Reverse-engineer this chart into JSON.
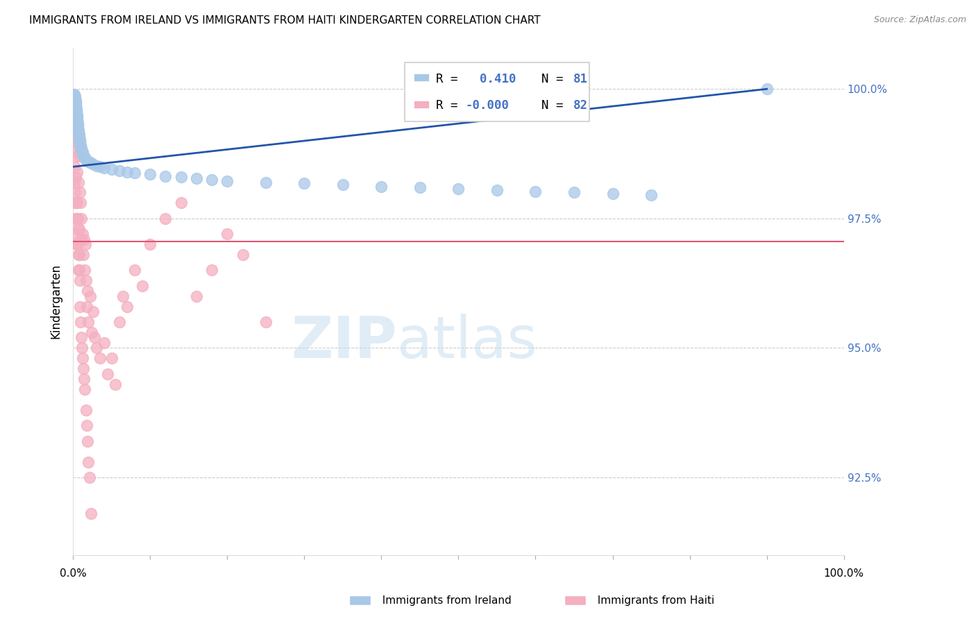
{
  "title": "IMMIGRANTS FROM IRELAND VS IMMIGRANTS FROM HAITI KINDERGARTEN CORRELATION CHART",
  "source": "Source: ZipAtlas.com",
  "ylabel": "Kindergarten",
  "xlim": [
    0.0,
    100.0
  ],
  "ylim": [
    91.0,
    100.8
  ],
  "yticks": [
    92.5,
    95.0,
    97.5,
    100.0
  ],
  "ytick_labels": [
    "92.5%",
    "95.0%",
    "97.5%",
    "100.0%"
  ],
  "ireland_color": "#a8c8e8",
  "haiti_color": "#f4afc0",
  "ireland_line_color": "#2255aa",
  "haiti_line_color": "#e05575",
  "ireland_R": "0.410",
  "ireland_N": "81",
  "haiti_R": "-0.000",
  "haiti_N": "82",
  "ireland_x": [
    0.15,
    0.18,
    0.2,
    0.22,
    0.25,
    0.28,
    0.3,
    0.3,
    0.32,
    0.35,
    0.35,
    0.38,
    0.4,
    0.4,
    0.42,
    0.45,
    0.45,
    0.48,
    0.5,
    0.5,
    0.52,
    0.55,
    0.55,
    0.58,
    0.6,
    0.6,
    0.62,
    0.65,
    0.65,
    0.68,
    0.7,
    0.72,
    0.75,
    0.78,
    0.8,
    0.82,
    0.85,
    0.88,
    0.9,
    0.92,
    0.95,
    0.98,
    1.0,
    1.05,
    1.1,
    1.15,
    1.2,
    1.25,
    1.3,
    1.4,
    1.5,
    1.6,
    1.8,
    2.0,
    2.2,
    2.5,
    3.0,
    3.5,
    4.0,
    5.0,
    6.0,
    7.0,
    8.0,
    10.0,
    12.0,
    14.0,
    16.0,
    18.0,
    20.0,
    25.0,
    30.0,
    35.0,
    40.0,
    45.0,
    50.0,
    55.0,
    60.0,
    65.0,
    70.0,
    75.0,
    90.0
  ],
  "ireland_y": [
    99.85,
    99.88,
    99.9,
    99.85,
    99.82,
    99.8,
    99.78,
    99.75,
    99.72,
    99.7,
    99.68,
    99.65,
    99.62,
    99.6,
    99.58,
    99.55,
    99.52,
    99.5,
    99.48,
    99.45,
    99.42,
    99.4,
    99.38,
    99.35,
    99.32,
    99.3,
    99.28,
    99.25,
    99.22,
    99.2,
    99.18,
    99.15,
    99.12,
    99.1,
    99.08,
    99.05,
    99.02,
    99.0,
    98.98,
    98.95,
    98.92,
    98.9,
    98.88,
    98.85,
    98.82,
    98.8,
    98.78,
    98.75,
    98.72,
    98.7,
    98.68,
    98.65,
    98.62,
    98.6,
    98.58,
    98.55,
    98.52,
    98.5,
    98.48,
    98.45,
    98.42,
    98.4,
    98.38,
    98.35,
    98.32,
    98.3,
    98.28,
    98.25,
    98.22,
    98.2,
    98.18,
    98.15,
    98.12,
    98.1,
    98.08,
    98.05,
    98.02,
    98.0,
    97.98,
    97.95,
    100.0
  ],
  "haiti_x": [
    0.1,
    0.15,
    0.2,
    0.25,
    0.3,
    0.35,
    0.4,
    0.45,
    0.5,
    0.55,
    0.6,
    0.65,
    0.7,
    0.75,
    0.8,
    0.85,
    0.9,
    0.95,
    1.0,
    1.1,
    1.2,
    1.3,
    1.4,
    1.5,
    1.6,
    1.7,
    1.8,
    1.9,
    2.0,
    2.2,
    2.4,
    2.6,
    2.8,
    3.0,
    3.5,
    4.0,
    4.5,
    5.0,
    5.5,
    6.0,
    6.5,
    7.0,
    8.0,
    9.0,
    10.0,
    12.0,
    14.0,
    16.0,
    18.0,
    20.0,
    22.0,
    25.0,
    0.12,
    0.18,
    0.22,
    0.28,
    0.32,
    0.38,
    0.42,
    0.48,
    0.52,
    0.58,
    0.62,
    0.68,
    0.72,
    0.78,
    0.82,
    0.88,
    0.92,
    0.98,
    1.05,
    1.15,
    1.25,
    1.35,
    1.45,
    1.55,
    1.65,
    1.75,
    1.85,
    1.95,
    2.1,
    2.3
  ],
  "haiti_y": [
    99.5,
    98.5,
    99.2,
    98.8,
    99.0,
    98.3,
    98.7,
    99.1,
    97.8,
    98.4,
    99.0,
    97.5,
    98.2,
    98.9,
    97.3,
    98.0,
    98.7,
    97.1,
    97.8,
    97.5,
    97.2,
    96.8,
    97.1,
    96.5,
    97.0,
    96.3,
    95.8,
    96.1,
    95.5,
    96.0,
    95.3,
    95.7,
    95.2,
    95.0,
    94.8,
    95.1,
    94.5,
    94.8,
    94.3,
    95.5,
    96.0,
    95.8,
    96.5,
    96.2,
    97.0,
    97.5,
    97.8,
    96.0,
    96.5,
    97.2,
    96.8,
    95.5,
    97.8,
    98.2,
    97.5,
    98.0,
    97.2,
    97.8,
    97.0,
    97.5,
    97.0,
    97.3,
    97.0,
    96.8,
    96.5,
    96.8,
    96.5,
    96.3,
    95.8,
    95.5,
    95.2,
    95.0,
    94.8,
    94.6,
    94.4,
    94.2,
    93.8,
    93.5,
    93.2,
    92.8,
    92.5,
    91.8
  ],
  "haiti_regression_y": 97.05,
  "ireland_reg_x0": 0.1,
  "ireland_reg_y0": 98.5,
  "ireland_reg_x1": 90.0,
  "ireland_reg_y1": 100.0
}
